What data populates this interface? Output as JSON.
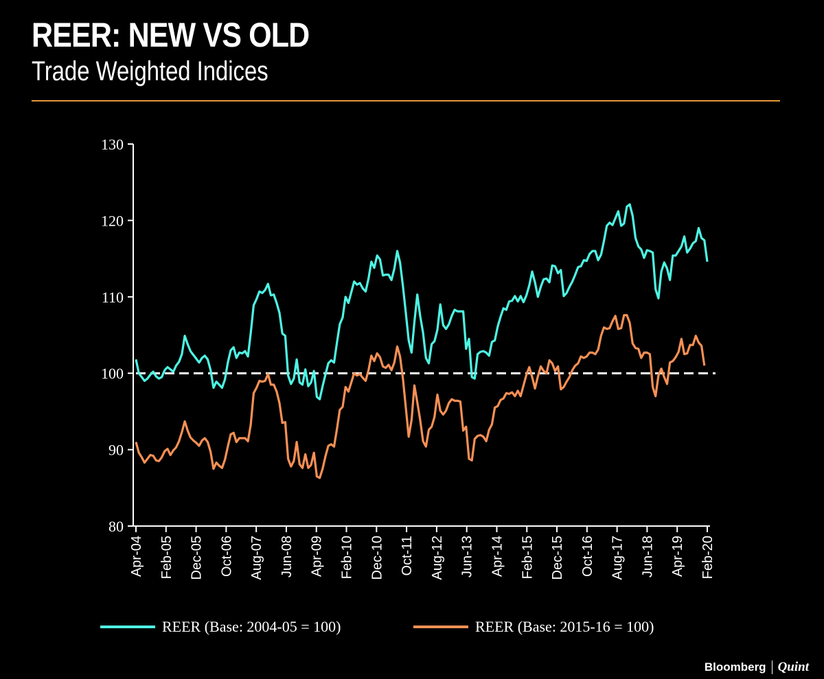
{
  "header": {
    "title": "REER: NEW VS OLD",
    "subtitle": "Trade Weighted Indices"
  },
  "brand": {
    "name_a": "Bloomberg",
    "name_b": "Quint"
  },
  "colors": {
    "background": "#000000",
    "accent_rule": "#e8973a",
    "series_old": "#4ef5e4",
    "series_new": "#f79055",
    "baseline": "#ffffff"
  },
  "chart_data": {
    "type": "line",
    "ylim": [
      80,
      130
    ],
    "yticks": [
      80,
      90,
      100,
      110,
      120,
      130
    ],
    "xticks": [
      "Apr-04",
      "Feb-05",
      "Dec-05",
      "Oct-06",
      "Aug-07",
      "Jun-08",
      "Apr-09",
      "Feb-10",
      "Dec-10",
      "Oct-11",
      "Aug-12",
      "Jun-13",
      "Apr-14",
      "Feb-15",
      "Dec-15",
      "Oct-16",
      "Aug-17",
      "Jun-18",
      "Apr-19",
      "Feb-20"
    ],
    "x_start": "Apr-04",
    "x_end": "Feb-20",
    "baseline_value": 100,
    "series": [
      {
        "name": "REER (Base: 2004-05 = 100)",
        "color": "#4ef5e4",
        "values": [
          101.8,
          100.0,
          99.5,
          99.0,
          99.3,
          99.8,
          100.2,
          99.6,
          99.3,
          99.5,
          100.4,
          100.8,
          100.5,
          100.2,
          101.0,
          101.5,
          102.5,
          104.9,
          103.8,
          102.9,
          102.4,
          101.9,
          101.4,
          102.0,
          102.3,
          101.8,
          100.4,
          98.1,
          98.9,
          98.5,
          98.1,
          99.2,
          101.4,
          103.0,
          103.4,
          102.0,
          102.7,
          102.6,
          102.9,
          102.2,
          105.3,
          108.9,
          109.7,
          110.7,
          110.5,
          110.9,
          111.7,
          110.2,
          110.3,
          109.2,
          107.9,
          105.2,
          104.9,
          99.7,
          98.6,
          99.3,
          101.8,
          98.8,
          98.5,
          100.5,
          98.3,
          98.8,
          100.3,
          96.9,
          96.6,
          98.3,
          99.8,
          101.3,
          101.7,
          101.4,
          104.0,
          106.4,
          107.3,
          110.0,
          109.2,
          110.6,
          112.0,
          111.6,
          111.8,
          111.1,
          110.7,
          112.4,
          114.6,
          113.8,
          115.4,
          114.9,
          112.8,
          112.9,
          112.9,
          112.2,
          113.7,
          116.0,
          114.5,
          111.4,
          107.9,
          104.3,
          102.7,
          106.7,
          110.3,
          107.5,
          105.3,
          102.0,
          101.3,
          103.8,
          104.2,
          105.7,
          109.0,
          106.3,
          105.8,
          106.4,
          107.5,
          108.3,
          108.1,
          108.1,
          108.1,
          103.2,
          104.5,
          99.5,
          99.3,
          102.5,
          102.8,
          102.9,
          102.7,
          102.3,
          104.1,
          104.3,
          106.1,
          107.4,
          108.5,
          108.3,
          109.4,
          109.5,
          110.1,
          109.4,
          110.1,
          109.3,
          110.2,
          111.5,
          113.3,
          111.9,
          110.0,
          111.3,
          112.3,
          112.4,
          111.9,
          114.1,
          114.0,
          113.1,
          113.5,
          110.1,
          110.5,
          111.3,
          112.0,
          112.9,
          113.9,
          114.0,
          114.8,
          114.7,
          115.6,
          116.0,
          116.0,
          114.8,
          115.5,
          117.3,
          119.3,
          119.7,
          119.4,
          120.3,
          121.2,
          119.3,
          119.6,
          121.8,
          122.1,
          120.6,
          117.7,
          116.6,
          116.2,
          115.1,
          116.1,
          116.0,
          115.8,
          111.0,
          109.8,
          113.3,
          114.5,
          113.7,
          112.2,
          115.4,
          115.4,
          116.0,
          116.6,
          117.9,
          115.8,
          116.3,
          117.0,
          117.3,
          119.0,
          117.7,
          117.4,
          114.6
        ]
      },
      {
        "name": "REER (Base: 2015-16 = 100)",
        "color": "#f79055",
        "values": [
          91.0,
          89.6,
          89.0,
          88.3,
          88.8,
          89.3,
          89.2,
          88.6,
          88.5,
          89.0,
          89.8,
          90.1,
          89.3,
          89.9,
          90.3,
          91.1,
          92.3,
          93.7,
          92.5,
          91.6,
          91.2,
          90.9,
          90.5,
          91.2,
          91.5,
          91.0,
          89.7,
          87.5,
          88.3,
          87.9,
          87.6,
          88.7,
          90.4,
          92.0,
          92.2,
          91.0,
          91.5,
          91.5,
          91.5,
          91.1,
          93.3,
          97.4,
          98.1,
          99.0,
          98.9,
          99.0,
          99.9,
          98.5,
          98.5,
          97.6,
          96.1,
          93.5,
          93.6,
          88.8,
          87.8,
          88.5,
          91.0,
          88.1,
          87.6,
          89.4,
          87.6,
          88.0,
          89.6,
          86.5,
          86.3,
          87.5,
          89.1,
          90.5,
          90.7,
          90.4,
          92.7,
          95.2,
          95.6,
          98.2,
          97.6,
          98.8,
          100.0,
          99.7,
          99.9,
          99.4,
          99.0,
          100.4,
          102.3,
          101.6,
          102.6,
          102.1,
          100.9,
          100.7,
          101.1,
          100.4,
          101.4,
          103.5,
          102.2,
          99.3,
          95.5,
          91.7,
          93.9,
          98.4,
          96.2,
          93.9,
          91.1,
          90.4,
          92.6,
          93.0,
          94.3,
          97.2,
          95.1,
          94.6,
          95.1,
          96.1,
          96.6,
          96.4,
          96.4,
          96.3,
          92.5,
          93.0,
          88.8,
          88.6,
          91.4,
          91.8,
          91.9,
          91.7,
          91.1,
          92.6,
          93.3,
          95.5,
          95.7,
          96.5,
          96.7,
          97.4,
          97.3,
          97.5,
          97.0,
          97.7,
          97.0,
          98.4,
          99.8,
          100.8,
          99.5,
          98.0,
          99.6,
          100.9,
          100.3,
          100.0,
          101.7,
          101.3,
          100.3,
          100.9,
          97.9,
          98.2,
          98.9,
          99.5,
          100.4,
          101.0,
          101.3,
          102.2,
          102.0,
          102.2,
          102.7,
          102.7,
          102.5,
          103.1,
          104.9,
          106.0,
          105.8,
          105.9,
          106.8,
          107.5,
          105.8,
          105.9,
          107.6,
          107.6,
          106.6,
          103.9,
          103.3,
          103.2,
          102.0,
          102.7,
          102.7,
          102.5,
          98.2,
          97.0,
          99.7,
          100.6,
          99.5,
          98.6,
          101.4,
          101.6,
          102.1,
          102.8,
          104.5,
          102.5,
          102.6,
          103.7,
          103.7,
          104.9,
          104.0,
          103.6,
          101.0
        ]
      }
    ]
  }
}
